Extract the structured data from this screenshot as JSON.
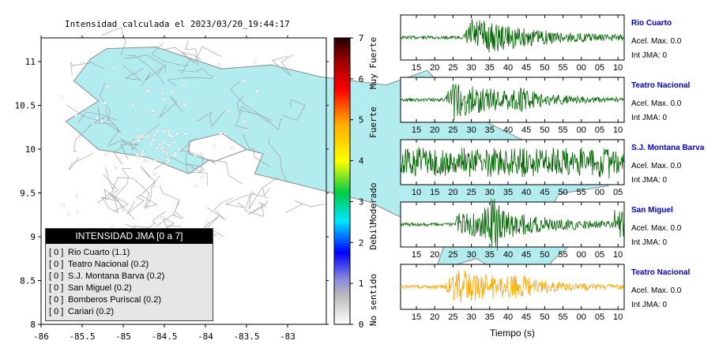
{
  "map": {
    "title": "Intensidad calculada el 2023/03/20_19:44:17",
    "x_ticks": [
      "-86",
      "-85.5",
      "-85",
      "-84.5",
      "-84",
      "-83.5",
      "-83"
    ],
    "y_ticks": [
      "11",
      "10.5",
      "10",
      "9.5",
      "9",
      "8.5",
      "8"
    ],
    "land_color": "#b2ecee"
  },
  "colorbar": {
    "ticks": [
      "7",
      "6",
      "5",
      "4",
      "3",
      "2",
      "1",
      "0"
    ],
    "labels": [
      "Muy Fuerte",
      "Fuerte",
      "Moderado",
      "Debil",
      "No sentido"
    ]
  },
  "legend": {
    "title": "INTENSIDAD JMA [0 a 7]",
    "rows": [
      {
        "box": "[ 0 ]",
        "label": "Rio Cuarto (1.1)"
      },
      {
        "box": "[ 0 ]",
        "label": "Teatro Nacional (0.2)"
      },
      {
        "box": "[ 0 ]",
        "label": "S.J. Montana Barva (0.2)"
      },
      {
        "box": "[ 0 ]",
        "label": "San Miguel (0.2)"
      },
      {
        "box": "[ 0 ]",
        "label": "Bomberos Puriscal (0.2)"
      },
      {
        "box": "[ 0 ]",
        "label": "Cariari (0.2)"
      }
    ]
  },
  "stations": [
    {
      "name": "Rio Cuarto",
      "acel": "Acel. Max. 0.0",
      "int": "Int JMA: 0",
      "color": "#006400"
    },
    {
      "name": "Teatro Nacional",
      "acel": "Acel. Max. 0.0",
      "int": "Int JMA: 0",
      "color": "#006400"
    },
    {
      "name": "S.J. Montana Barva",
      "acel": "Acel. Max. 0.0",
      "int": "Int JMA: 0",
      "color": "#006400"
    },
    {
      "name": "San Miguel",
      "acel": "Acel. Max. 0.0",
      "int": "Int JMA: 0",
      "color": "#006400"
    },
    {
      "name": "Teatro Nacional",
      "acel": "Acel. Max. 0.0",
      "int": "Int JMA: 0",
      "color": "#ffa500"
    }
  ],
  "xlabel": "Tiempo (s)",
  "chart_data": [
    {
      "type": "line",
      "series": [
        {
          "name": "Rio Cuarto",
          "x_ticks": [
            "15",
            "20",
            "25",
            "30",
            "35",
            "40",
            "45",
            "50",
            "55",
            "00",
            "05",
            "10"
          ],
          "burst_at": 30,
          "amplitude": 0.95
        },
        {
          "name": "Teatro Nacional",
          "x_ticks": [
            "15",
            "20",
            "25",
            "30",
            "35",
            "40",
            "45",
            "50",
            "55",
            "00",
            "05",
            "10"
          ],
          "burst_at": 25,
          "amplitude": 0.9
        },
        {
          "name": "S.J. Montana Barva",
          "x_ticks": [
            "10",
            "15",
            "20",
            "25",
            "30",
            "35",
            "40",
            "45",
            "50",
            "55",
            "00",
            "05"
          ],
          "burst_at": 13,
          "amplitude": 0.8
        },
        {
          "name": "San Miguel",
          "x_ticks": [
            "15",
            "20",
            "25",
            "30",
            "35",
            "40",
            "45",
            "50",
            "55",
            "00",
            "05",
            "10"
          ],
          "burst_at": 35,
          "amplitude": 0.8
        },
        {
          "name": "Teatro Nacional",
          "x_ticks": [
            "15",
            "20",
            "25",
            "30",
            "35",
            "40",
            "45",
            "50",
            "55",
            "00",
            "05",
            "10"
          ],
          "burst_at": 25,
          "amplitude": 0.9
        }
      ],
      "xlabel": "Tiempo (s)"
    }
  ]
}
